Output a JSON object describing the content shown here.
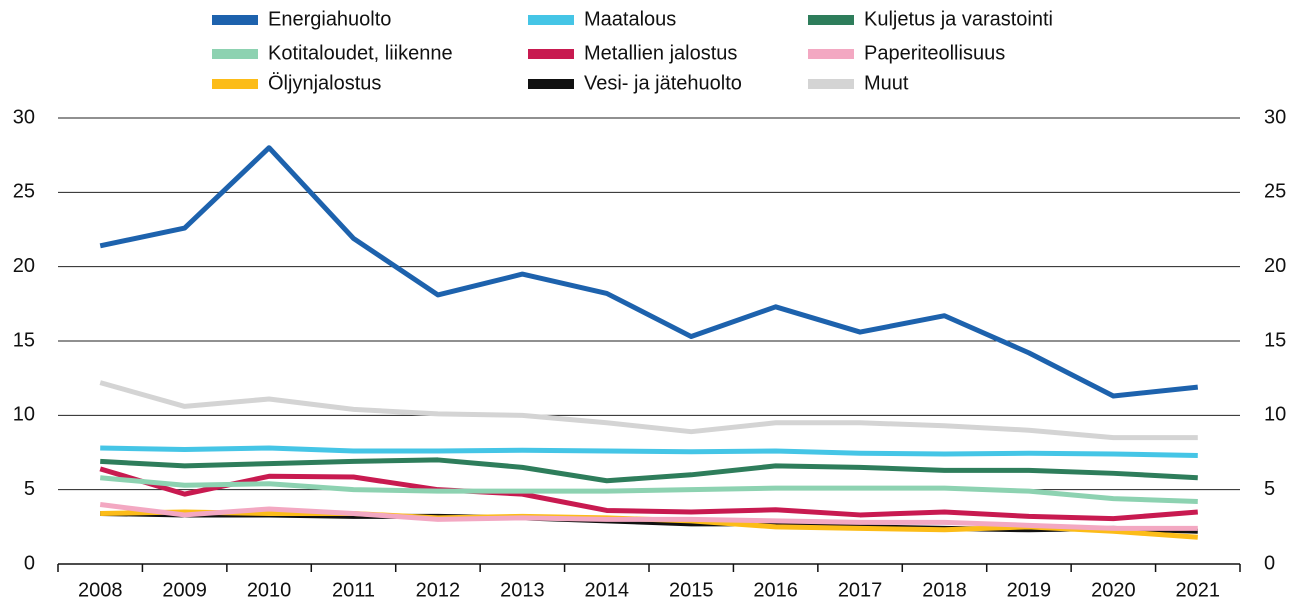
{
  "chart_data": {
    "type": "line",
    "categories": [
      "2008",
      "2009",
      "2010",
      "2011",
      "2012",
      "2013",
      "2014",
      "2015",
      "2016",
      "2017",
      "2018",
      "2019",
      "2020",
      "2021"
    ],
    "ylim": [
      0,
      30
    ],
    "yticks": [
      0,
      5,
      10,
      15,
      20,
      25,
      30
    ],
    "grid": true,
    "series": [
      {
        "name": "Energiahuolto",
        "color": "#1d62ad",
        "values": [
          21.4,
          22.6,
          28.0,
          21.9,
          18.1,
          19.5,
          18.2,
          15.3,
          17.3,
          15.6,
          16.7,
          14.2,
          11.3,
          11.9
        ]
      },
      {
        "name": "Maatalous",
        "color": "#45c5e6",
        "values": [
          7.8,
          7.7,
          7.8,
          7.6,
          7.6,
          7.65,
          7.6,
          7.55,
          7.6,
          7.45,
          7.4,
          7.45,
          7.4,
          7.3
        ]
      },
      {
        "name": "Kuljetus ja varastointi",
        "color": "#2e7d5b",
        "values": [
          6.9,
          6.6,
          6.75,
          6.9,
          7.0,
          6.5,
          5.6,
          6.0,
          6.6,
          6.5,
          6.3,
          6.3,
          6.1,
          5.8
        ]
      },
      {
        "name": "Kotitaloudet, liikenne",
        "color": "#8dd2b1",
        "values": [
          5.8,
          5.3,
          5.4,
          5.0,
          4.9,
          4.9,
          4.9,
          5.0,
          5.1,
          5.1,
          5.1,
          4.9,
          4.4,
          4.2
        ]
      },
      {
        "name": "Metallien jalostus",
        "color": "#c81a50",
        "values": [
          6.4,
          4.7,
          5.9,
          5.85,
          5.0,
          4.7,
          3.6,
          3.5,
          3.65,
          3.3,
          3.5,
          3.2,
          3.05,
          3.5
        ]
      },
      {
        "name": "Paperiteollisuus",
        "color": "#f3a8c2",
        "values": [
          4.0,
          3.3,
          3.7,
          3.4,
          3.0,
          3.1,
          3.0,
          3.0,
          2.9,
          2.8,
          2.8,
          2.6,
          2.4,
          2.4
        ]
      },
      {
        "name": "Öljynjalostus",
        "color": "#fcbc18",
        "values": [
          3.4,
          3.5,
          3.4,
          3.4,
          3.1,
          3.2,
          3.1,
          2.9,
          2.5,
          2.4,
          2.3,
          2.5,
          2.2,
          1.8
        ]
      },
      {
        "name": "Vesi- ja jätehuolto",
        "color": "#111111",
        "values": [
          3.4,
          3.3,
          3.3,
          3.2,
          3.2,
          3.1,
          2.9,
          2.7,
          2.7,
          2.5,
          2.4,
          2.3,
          2.4,
          2.2
        ]
      },
      {
        "name": "Muut",
        "color": "#d4d4d4",
        "values": [
          12.2,
          10.6,
          11.1,
          10.4,
          10.1,
          10.0,
          9.5,
          8.9,
          9.5,
          9.5,
          9.3,
          9.0,
          8.5,
          8.5
        ]
      }
    ]
  }
}
